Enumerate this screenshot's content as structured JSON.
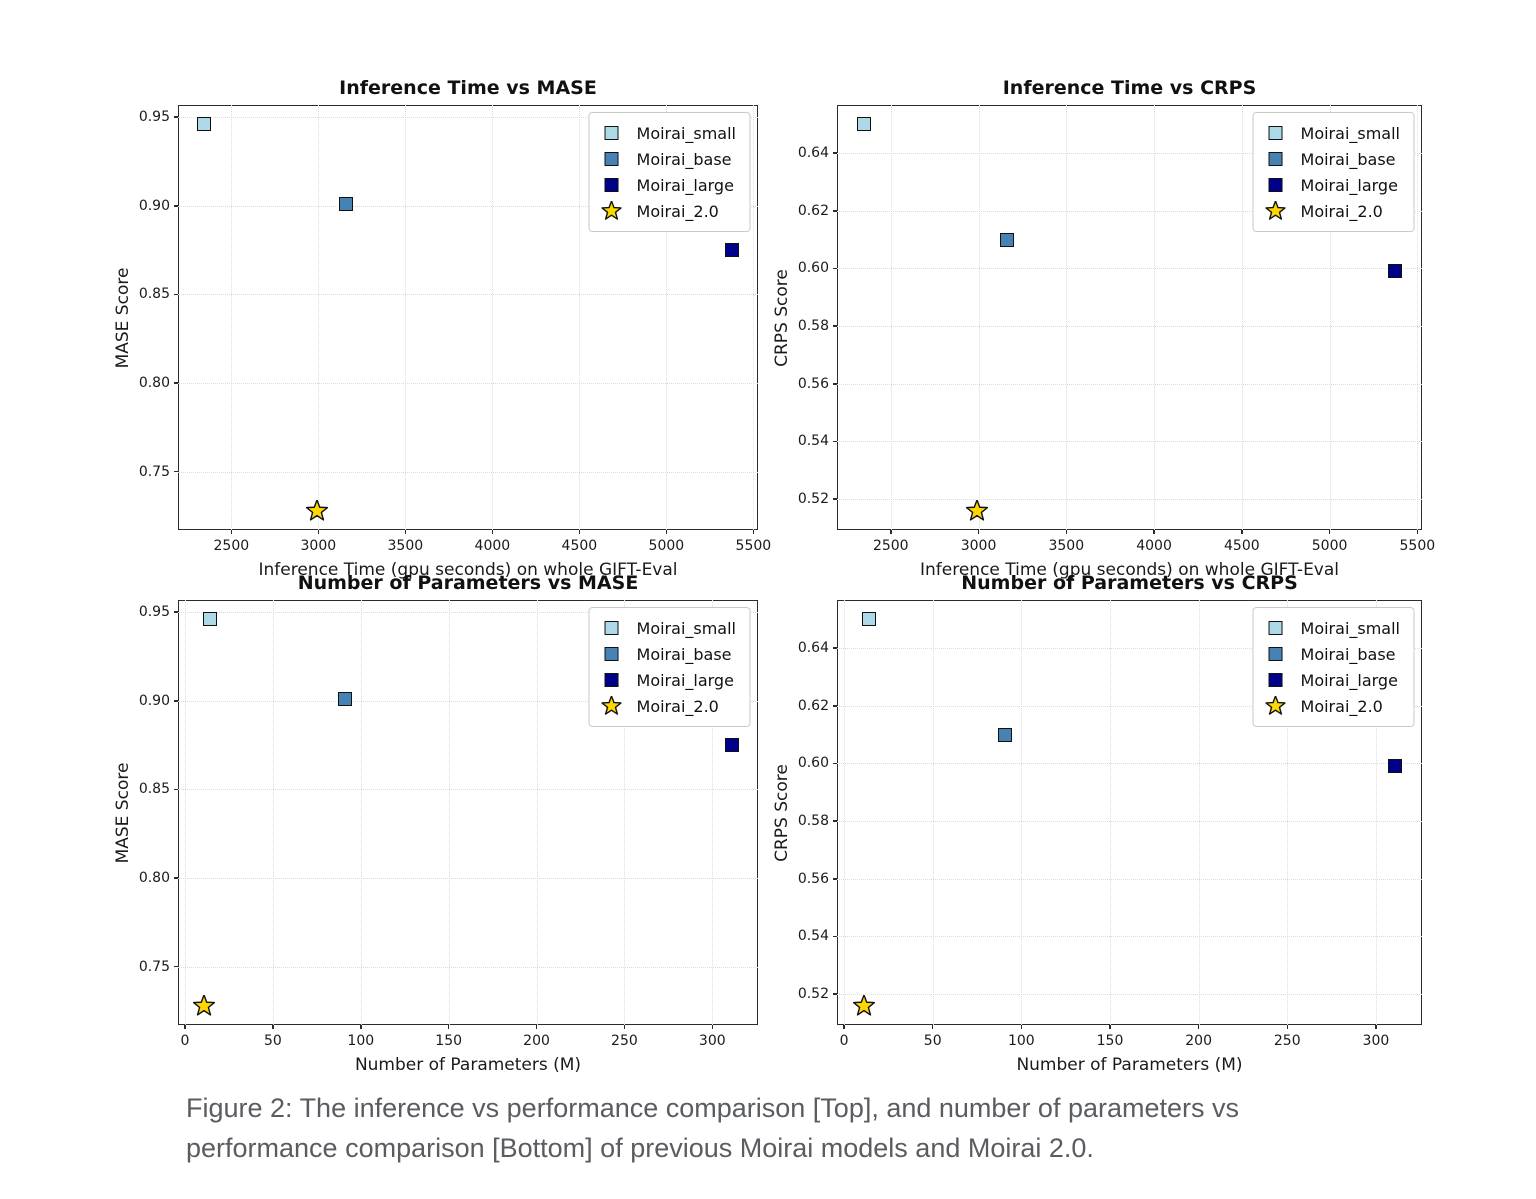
{
  "figure": {
    "caption_line1": "Figure 2: The inference vs performance comparison [Top], and number of parameters vs",
    "caption_line2": "performance comparison [Bottom] of previous Moirai models and Moirai 2.0."
  },
  "colors": {
    "moirai_small": "#add8e6",
    "moirai_base": "#4682b4",
    "moirai_large": "#00008b",
    "moirai_2_0": "#ffd700",
    "marker_edge": "#111111",
    "grid": "#dcdcdc",
    "spine": "#2b2b2b",
    "caption_text": "#595c60"
  },
  "chart_data": [
    {
      "id": "inference-time-vs-mase",
      "type": "scatter",
      "title": "Inference Time vs MASE",
      "xlabel": "Inference Time (gpu seconds) on whole GIFT-Eval",
      "ylabel": "MASE Score",
      "xlim": [
        2193.5,
        5526.5
      ],
      "ylim": [
        0.7171,
        0.9569
      ],
      "xticks": [
        2500,
        3000,
        3500,
        4000,
        4500,
        5000,
        5500
      ],
      "xtick_labels": [
        "2500",
        "3000",
        "3500",
        "4000",
        "4500",
        "5000",
        "5500"
      ],
      "yticks": [
        0.95,
        0.9,
        0.85,
        0.8,
        0.75
      ],
      "ytick_labels": [
        "0.95",
        "0.90",
        "0.85",
        "0.80",
        "0.75"
      ],
      "grid": true,
      "legend_position": "top-right",
      "points": [
        {
          "name": "Moirai_small",
          "marker": "square",
          "color_key": "moirai_small",
          "x": 2345,
          "y": 0.946
        },
        {
          "name": "Moirai_base",
          "marker": "square",
          "color_key": "moirai_base",
          "x": 3160,
          "y": 0.901
        },
        {
          "name": "Moirai_large",
          "marker": "square",
          "color_key": "moirai_large",
          "x": 5375,
          "y": 0.875
        },
        {
          "name": "Moirai_2.0",
          "marker": "star",
          "color_key": "moirai_2_0",
          "x": 2990,
          "y": 0.728
        }
      ]
    },
    {
      "id": "inference-time-vs-crps",
      "type": "scatter",
      "title": "Inference Time vs CRPS",
      "xlabel": "Inference Time (gpu seconds) on whole GIFT-Eval",
      "ylabel": "CRPS Score",
      "xlim": [
        2193.5,
        5526.5
      ],
      "ylim": [
        0.5093,
        0.6567
      ],
      "xticks": [
        2500,
        3000,
        3500,
        4000,
        4500,
        5000,
        5500
      ],
      "xtick_labels": [
        "2500",
        "3000",
        "3500",
        "4000",
        "4500",
        "5000",
        "5500"
      ],
      "yticks": [
        0.64,
        0.62,
        0.6,
        0.58,
        0.56,
        0.54,
        0.52
      ],
      "ytick_labels": [
        "0.64",
        "0.62",
        "0.60",
        "0.58",
        "0.56",
        "0.54",
        "0.52"
      ],
      "grid": true,
      "legend_position": "top-right",
      "points": [
        {
          "name": "Moirai_small",
          "marker": "square",
          "color_key": "moirai_small",
          "x": 2345,
          "y": 0.65
        },
        {
          "name": "Moirai_base",
          "marker": "square",
          "color_key": "moirai_base",
          "x": 3160,
          "y": 0.61
        },
        {
          "name": "Moirai_large",
          "marker": "square",
          "color_key": "moirai_large",
          "x": 5375,
          "y": 0.599
        },
        {
          "name": "Moirai_2.0",
          "marker": "star",
          "color_key": "moirai_2_0",
          "x": 2990,
          "y": 0.516
        }
      ]
    },
    {
      "id": "number-of-parameters-vs-mase",
      "type": "scatter",
      "title": "Number of Parameters vs MASE",
      "xlabel": "Number of Parameters (M)",
      "ylabel": "MASE Score",
      "xlim": [
        -4,
        326
      ],
      "ylim": [
        0.7171,
        0.9569
      ],
      "xticks": [
        0,
        50,
        100,
        150,
        200,
        250,
        300
      ],
      "xtick_labels": [
        "0",
        "50",
        "100",
        "150",
        "200",
        "250",
        "300"
      ],
      "yticks": [
        0.95,
        0.9,
        0.85,
        0.8,
        0.75
      ],
      "ytick_labels": [
        "0.95",
        "0.90",
        "0.85",
        "0.80",
        "0.75"
      ],
      "grid": true,
      "legend_position": "top-right",
      "points": [
        {
          "name": "Moirai_small",
          "marker": "square",
          "color_key": "moirai_small",
          "x": 14,
          "y": 0.946
        },
        {
          "name": "Moirai_base",
          "marker": "square",
          "color_key": "moirai_base",
          "x": 91,
          "y": 0.901
        },
        {
          "name": "Moirai_large",
          "marker": "square",
          "color_key": "moirai_large",
          "x": 311,
          "y": 0.875
        },
        {
          "name": "Moirai_2.0",
          "marker": "star",
          "color_key": "moirai_2_0",
          "x": 11,
          "y": 0.728
        }
      ]
    },
    {
      "id": "number-of-parameters-vs-crps",
      "type": "scatter",
      "title": "Number of Parameters vs CRPS",
      "xlabel": "Number of Parameters (M)",
      "ylabel": "CRPS Score",
      "xlim": [
        -4,
        326
      ],
      "ylim": [
        0.5093,
        0.6567
      ],
      "xticks": [
        0,
        50,
        100,
        150,
        200,
        250,
        300
      ],
      "xtick_labels": [
        "0",
        "50",
        "100",
        "150",
        "200",
        "250",
        "300"
      ],
      "yticks": [
        0.64,
        0.62,
        0.6,
        0.58,
        0.56,
        0.54,
        0.52
      ],
      "ytick_labels": [
        "0.64",
        "0.62",
        "0.60",
        "0.58",
        "0.56",
        "0.54",
        "0.52"
      ],
      "grid": true,
      "legend_position": "top-right",
      "points": [
        {
          "name": "Moirai_small",
          "marker": "square",
          "color_key": "moirai_small",
          "x": 14,
          "y": 0.65
        },
        {
          "name": "Moirai_base",
          "marker": "square",
          "color_key": "moirai_base",
          "x": 91,
          "y": 0.61
        },
        {
          "name": "Moirai_large",
          "marker": "square",
          "color_key": "moirai_large",
          "x": 311,
          "y": 0.599
        },
        {
          "name": "Moirai_2.0",
          "marker": "star",
          "color_key": "moirai_2_0",
          "x": 11,
          "y": 0.516
        }
      ]
    }
  ]
}
